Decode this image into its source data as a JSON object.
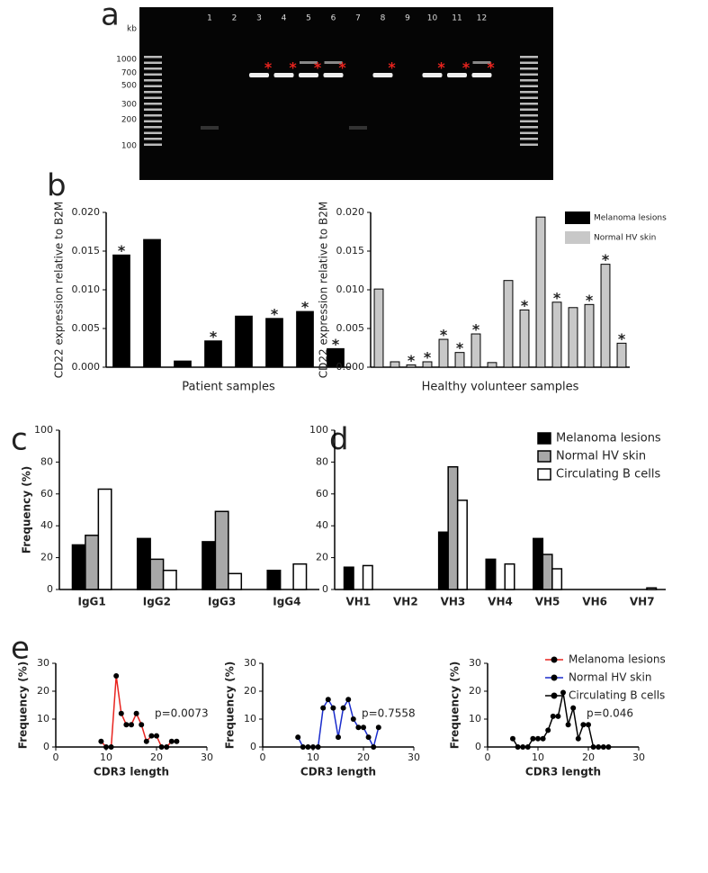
{
  "gel": {
    "panel": "a",
    "unit": "kb",
    "ladder": [
      1000,
      700,
      500,
      300,
      200,
      100
    ],
    "lanes": [
      "1",
      "2",
      "3",
      "4",
      "5",
      "6",
      "7",
      "8",
      "9",
      "10",
      "11",
      "12"
    ],
    "star": "*"
  },
  "chart_data": [
    {
      "type": "bar",
      "panel": "b",
      "ylabel": "CD22 expression relative to B2M",
      "xlabel": "Patient samples",
      "categories": [
        null,
        null,
        null,
        null,
        null,
        null,
        null,
        null
      ],
      "values": [
        0.0145,
        0.0165,
        0.0008,
        0.0034,
        0.0066,
        0.0063,
        0.0072,
        0.0024
      ],
      "significance": [
        "*",
        null,
        null,
        "*",
        null,
        "*",
        "*",
        "*"
      ],
      "color": "#000000",
      "ylim": [
        0,
        0.02
      ],
      "yticks": [
        {
          "value": 0,
          "label": "0.000"
        },
        {
          "value": 0.005,
          "label": "0.005"
        },
        {
          "value": 0.01,
          "label": "0.010"
        },
        {
          "value": 0.015,
          "label": "0.015"
        },
        {
          "value": 0.02,
          "label": "0.020"
        }
      ]
    },
    {
      "type": "bar",
      "ylabel": "CD22 expression relative to B2M",
      "xlabel": "Healthy volunteer samples",
      "categories": [
        null,
        null,
        null,
        null,
        null,
        null,
        null,
        null,
        null,
        null,
        null,
        null,
        null,
        null,
        null,
        null
      ],
      "values": [
        0.0101,
        0.0007,
        0.0003,
        0.0007,
        0.0036,
        0.0019,
        0.0043,
        0.0006,
        0.0112,
        0.0074,
        0.0194,
        0.0084,
        0.0077,
        0.0081,
        0.0133,
        0.0031
      ],
      "significance": [
        null,
        null,
        "*",
        "*",
        "*",
        "*",
        "*",
        null,
        null,
        "*",
        null,
        "*",
        null,
        "*",
        "*",
        "*"
      ],
      "color": "#c8c8c8",
      "ylim": [
        0,
        0.02
      ],
      "yticks": [
        {
          "value": 0,
          "label": "0.000"
        },
        {
          "value": 0.005,
          "label": "0.005"
        },
        {
          "value": 0.01,
          "label": "0.010"
        },
        {
          "value": 0.015,
          "label": "0.015"
        },
        {
          "value": 0.02,
          "label": "0.020"
        }
      ],
      "legend_entries": [
        {
          "name": "Melanoma lesions",
          "color": "#000000"
        },
        {
          "name": "Normal HV skin",
          "color": "#c8c8c8"
        }
      ]
    },
    {
      "type": "bar",
      "panel": "c",
      "ylabel": "Frequency (%)",
      "categories": [
        "IgG1",
        "IgG2",
        "IgG3",
        "IgG4"
      ],
      "series": [
        {
          "name": "Melanoma lesions",
          "color": "#000000",
          "values": [
            28,
            32,
            30,
            12
          ]
        },
        {
          "name": "Normal HV skin",
          "color": "#a8a8a8",
          "values": [
            34,
            19,
            49,
            0
          ]
        },
        {
          "name": "Circulating B cells",
          "color": "#ffffff",
          "values": [
            63,
            12,
            10,
            16
          ]
        }
      ],
      "ylim": [
        0,
        100
      ],
      "yticks": [
        0,
        20,
        40,
        60,
        80,
        100
      ]
    },
    {
      "type": "bar",
      "panel": "d",
      "categories": [
        "VH1",
        "VH2",
        "VH3",
        "VH4",
        "VH5",
        "VH6",
        "VH7"
      ],
      "series": [
        {
          "name": "Melanoma lesions",
          "color": "#000000",
          "values": [
            14,
            0,
            36,
            19,
            32,
            0,
            0
          ]
        },
        {
          "name": "Normal HV skin",
          "color": "#a8a8a8",
          "values": [
            0,
            0,
            77,
            0,
            22,
            0,
            0
          ]
        },
        {
          "name": "Circulating B cells",
          "color": "#ffffff",
          "values": [
            15,
            0,
            56,
            16,
            13,
            0,
            1
          ]
        }
      ],
      "ylim": [
        0,
        100
      ],
      "yticks": [
        0,
        20,
        40,
        60,
        80,
        100
      ],
      "legend": true
    },
    {
      "type": "line",
      "panel": "e",
      "ylabel": "Frequency (%)",
      "xlabel": "CDR3 length",
      "annotation": "p=0.0073",
      "x": [
        9,
        10,
        11,
        12,
        13,
        14,
        15,
        16,
        17,
        18,
        19,
        20,
        21,
        22,
        23,
        24
      ],
      "series": [
        {
          "name": "Melanoma lesions",
          "color": "#e8231e",
          "values": [
            2,
            0,
            0,
            25.5,
            12,
            8,
            8,
            12,
            8,
            2,
            4,
            4,
            0,
            0,
            2,
            2
          ]
        }
      ],
      "xlim": [
        0,
        30
      ],
      "xticks": [
        0,
        10,
        20,
        30
      ],
      "ylim": [
        0,
        30
      ],
      "yticks": [
        0,
        10,
        20,
        30
      ]
    },
    {
      "type": "line",
      "ylabel": "Frequency (%)",
      "xlabel": "CDR3 length",
      "annotation": "p=0.7558",
      "x": [
        7,
        8,
        9,
        10,
        11,
        12,
        13,
        14,
        15,
        16,
        17,
        18,
        19,
        20,
        21,
        22,
        23
      ],
      "series": [
        {
          "name": "Normal HV skin",
          "color": "#1a2ccc",
          "values": [
            3.5,
            0,
            0,
            0,
            0,
            14,
            17,
            14,
            3.5,
            14,
            17,
            10,
            7,
            7,
            3.5,
            0,
            7
          ]
        }
      ],
      "xlim": [
        0,
        30
      ],
      "xticks": [
        0,
        10,
        20,
        30
      ],
      "ylim": [
        0,
        30
      ],
      "yticks": [
        0,
        10,
        20,
        30
      ]
    },
    {
      "type": "line",
      "ylabel": "Frequency (%)",
      "xlabel": "CDR3 length",
      "annotation": "p=0.046",
      "x": [
        5,
        6,
        7,
        8,
        9,
        10,
        11,
        12,
        13,
        14,
        15,
        16,
        17,
        18,
        19,
        20,
        21,
        22,
        23,
        24
      ],
      "series": [
        {
          "name": "Circulating B cells",
          "color": "#000000",
          "values": [
            3,
            0,
            0,
            0,
            3,
            3,
            3,
            6,
            11,
            11,
            19.5,
            8,
            14,
            3,
            8,
            8,
            0,
            0,
            0,
            0
          ]
        }
      ],
      "xlim": [
        0,
        30
      ],
      "xticks": [
        0,
        10,
        20,
        30
      ],
      "ylim": [
        0,
        30
      ],
      "yticks": [
        0,
        10,
        20,
        30
      ],
      "legend": true
    }
  ]
}
